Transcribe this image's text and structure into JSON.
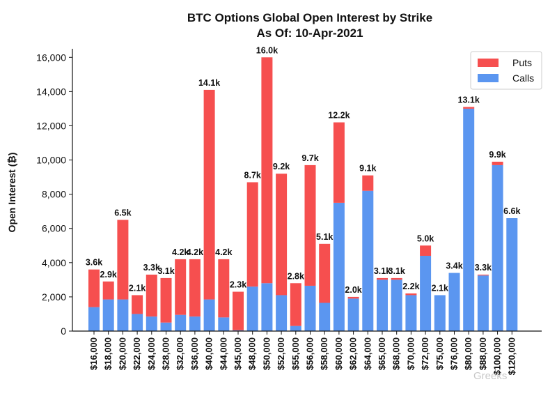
{
  "chart_data": {
    "type": "bar",
    "stacked": true,
    "title": "BTC Options Global Open Interest by Strike",
    "subtitle": "As Of: 10-Apr-2021",
    "xlabel": "",
    "ylabel": "Open Interest (₿)",
    "ylim": [
      0,
      16500
    ],
    "yticks": [
      0,
      2000,
      4000,
      6000,
      8000,
      10000,
      12000,
      14000,
      16000
    ],
    "ytick_labels": [
      "0",
      "2,000",
      "4,000",
      "6,000",
      "8,000",
      "10,000",
      "12,000",
      "14,000",
      "16,000"
    ],
    "categories": [
      "$16,000",
      "$18,000",
      "$20,000",
      "$22,000",
      "$24,000",
      "$28,000",
      "$32,000",
      "$36,000",
      "$40,000",
      "$44,000",
      "$45,000",
      "$48,000",
      "$50,000",
      "$52,000",
      "$55,000",
      "$56,000",
      "$58,000",
      "$60,000",
      "$62,000",
      "$64,000",
      "$65,000",
      "$68,000",
      "$70,000",
      "$72,000",
      "$75,000",
      "$76,000",
      "$80,000",
      "$88,000",
      "$100,000",
      "$120,000"
    ],
    "series": [
      {
        "name": "Calls",
        "color": "#5b96f0",
        "values": [
          1400,
          1850,
          1850,
          1000,
          850,
          500,
          950,
          850,
          1850,
          800,
          50,
          2600,
          2800,
          2100,
          300,
          2650,
          1650,
          7500,
          1900,
          8200,
          3000,
          3000,
          2100,
          4400,
          2100,
          3400,
          13000,
          3250,
          9700,
          6600
        ]
      },
      {
        "name": "Puts",
        "color": "#f64f4f",
        "values": [
          2200,
          1050,
          4650,
          1100,
          2450,
          2600,
          3250,
          3350,
          12250,
          3400,
          2250,
          6100,
          13200,
          7100,
          2500,
          7050,
          3450,
          4700,
          100,
          900,
          100,
          100,
          100,
          600,
          0,
          0,
          100,
          50,
          200,
          0
        ]
      }
    ],
    "data_labels": [
      "3.6k",
      "2.9k",
      "6.5k",
      "2.1k",
      "3.3k",
      "3.1k",
      "4.2k",
      "4.2k",
      "14.1k",
      "4.2k",
      "2.3k",
      "8.7k",
      "16.0k",
      "9.2k",
      "2.8k",
      "9.7k",
      "5.1k",
      "12.2k",
      "2.0k",
      "9.1k",
      "3.1k",
      "3.1k",
      "2.2k",
      "5.0k",
      "2.1k",
      "3.4k",
      "13.1k",
      "3.3k",
      "9.9k",
      "6.6k"
    ],
    "legend": {
      "position": "top-right",
      "entries": [
        "Puts",
        "Calls"
      ]
    },
    "grid": false
  },
  "watermark": "Greeks"
}
